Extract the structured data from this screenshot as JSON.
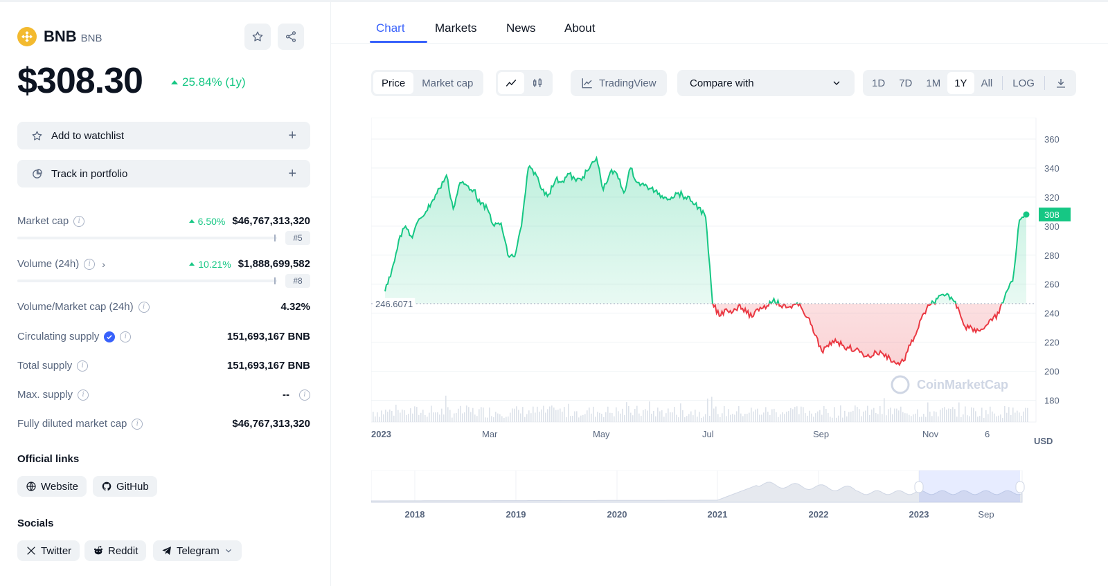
{
  "coin": {
    "name": "BNB",
    "symbol": "BNB",
    "price": "$308.30",
    "change": "25.84% (1y)",
    "logo_icon": "bnb-logo-icon",
    "accent": "#f3ba2f"
  },
  "actions": {
    "watchlist": "Add to watchlist",
    "portfolio": "Track in portfolio",
    "plus": "+"
  },
  "stats": {
    "market_cap": {
      "label": "Market cap",
      "pct": "6.50%",
      "value": "$46,767,313,320",
      "rank": "#5"
    },
    "volume": {
      "label": "Volume (24h)",
      "pct": "10.21%",
      "value": "$1,888,699,582",
      "rank": "#8"
    },
    "vol_mcap": {
      "label": "Volume/Market cap (24h)",
      "value": "4.32%"
    },
    "circulating": {
      "label": "Circulating supply",
      "value": "151,693,167 BNB"
    },
    "total": {
      "label": "Total supply",
      "value": "151,693,167 BNB"
    },
    "max": {
      "label": "Max. supply",
      "value": "--"
    },
    "fdmc": {
      "label": "Fully diluted market cap",
      "value": "$46,767,313,320"
    }
  },
  "links": {
    "title": "Official links",
    "website": "Website",
    "github": "GitHub"
  },
  "socials": {
    "title": "Socials",
    "twitter": "Twitter",
    "reddit": "Reddit",
    "telegram": "Telegram"
  },
  "tabs": [
    "Chart",
    "Markets",
    "News",
    "About"
  ],
  "toolbar": {
    "price": "Price",
    "market_cap": "Market cap",
    "tradingview": "TradingView",
    "compare": "Compare with",
    "ranges": [
      "1D",
      "7D",
      "1M",
      "1Y",
      "All"
    ],
    "active_range": "1Y",
    "log": "LOG"
  },
  "colors": {
    "up": "#16c784",
    "down": "#ea3943",
    "brand": "#3861fb"
  },
  "chart_data": {
    "type": "line",
    "currency": "USD",
    "baseline": 246.6071,
    "baseline_label": "246.6071",
    "last_value": 308,
    "last_label": "308",
    "ylim": [
      165,
      370
    ],
    "yticks": [
      180,
      200,
      220,
      240,
      260,
      280,
      300,
      320,
      340,
      360
    ],
    "xticks": [
      "2023",
      "Mar",
      "May",
      "Jul",
      "Sep",
      "Nov",
      "6"
    ],
    "watermark": "CoinMarketCap",
    "series": [
      {
        "values": [
          255,
          270,
          290,
          300,
          292,
          305,
          310,
          318,
          326,
          335,
          312,
          330,
          328,
          325,
          315,
          312,
          300,
          302,
          280,
          279,
          300,
          340,
          337,
          325,
          322,
          332,
          331,
          336,
          331,
          334,
          340,
          347,
          325,
          337,
          336,
          323,
          340,
          330,
          328,
          326,
          322,
          320,
          320,
          323,
          320,
          317,
          313,
          306,
          247,
          238,
          243,
          241,
          246,
          240,
          238,
          244,
          245,
          250,
          245,
          244,
          246,
          244,
          237,
          225,
          214,
          217,
          222,
          218,
          216,
          215,
          212,
          210,
          213,
          212,
          209,
          205,
          207,
          218,
          228,
          240,
          246,
          250,
          252,
          251,
          244,
          231,
          230,
          228,
          231,
          235,
          240,
          254,
          262,
          304,
          308
        ]
      }
    ]
  },
  "navigator": {
    "years": [
      "2018",
      "2019",
      "2020",
      "2021",
      "2022",
      "2023",
      "Sep"
    ]
  }
}
